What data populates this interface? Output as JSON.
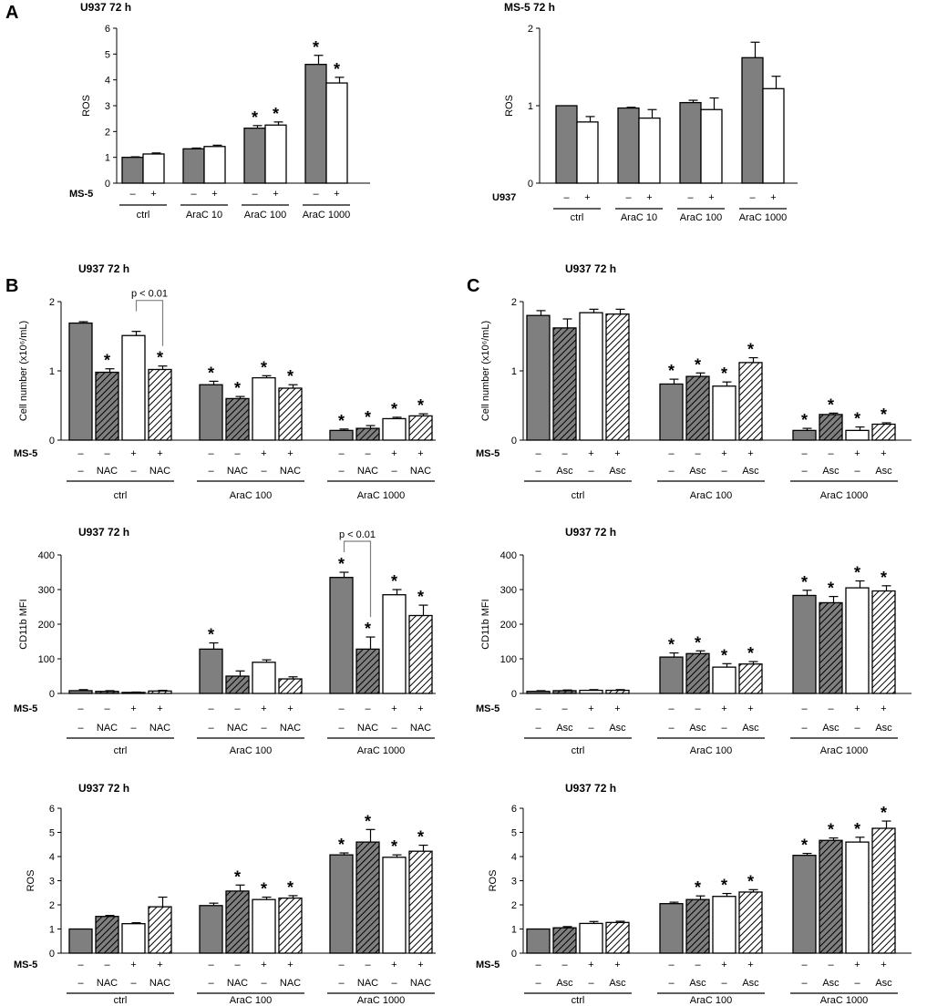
{
  "figure": {
    "panel_labels": [
      "A",
      "B",
      "C"
    ],
    "colors": {
      "ctrl_bar": "#7f7f7f",
      "ms5_bar": "#ffffff",
      "axis": "#000000",
      "bracket": "#808080"
    }
  },
  "chart_data": [
    {
      "id": "A-left",
      "type": "bar",
      "title": "U937 72 h",
      "ylabel": "ROS",
      "ylim": [
        0,
        6
      ],
      "yticks": [
        0,
        1,
        2,
        3,
        4,
        5,
        6
      ],
      "factor_label": "MS-5",
      "factor_values": [
        "–",
        "+"
      ],
      "groups": [
        "ctrl",
        "AraC 10",
        "AraC 100",
        "AraC 1000"
      ],
      "series": [
        {
          "name": "MS-5 –",
          "style": "grey",
          "values": [
            1.0,
            1.33,
            2.13,
            4.6
          ],
          "errors": [
            0.02,
            0.03,
            0.1,
            0.35
          ],
          "sig": [
            false,
            false,
            true,
            true
          ]
        },
        {
          "name": "MS-5 +",
          "style": "white",
          "values": [
            1.13,
            1.42,
            2.25,
            3.88
          ],
          "errors": [
            0.04,
            0.05,
            0.12,
            0.22
          ],
          "sig": [
            false,
            false,
            true,
            true
          ]
        }
      ]
    },
    {
      "id": "A-right",
      "type": "bar",
      "title": "MS-5 72 h",
      "ylabel": "ROS",
      "ylim": [
        0,
        2
      ],
      "yticks": [
        0,
        1,
        2
      ],
      "factor_label": "U937",
      "factor_values": [
        "–",
        "+"
      ],
      "groups": [
        "ctrl",
        "AraC 10",
        "AraC 100",
        "AraC 1000"
      ],
      "series": [
        {
          "name": "U937 –",
          "style": "grey",
          "values": [
            1.0,
            0.97,
            1.04,
            1.62
          ],
          "errors": [
            0.0,
            0.01,
            0.03,
            0.2
          ],
          "sig": [
            false,
            false,
            false,
            false
          ]
        },
        {
          "name": "U937 +",
          "style": "white",
          "values": [
            0.79,
            0.84,
            0.95,
            1.22
          ],
          "errors": [
            0.07,
            0.11,
            0.15,
            0.16
          ],
          "sig": [
            false,
            false,
            false,
            false
          ]
        }
      ]
    },
    {
      "id": "B-cell",
      "type": "bar",
      "title": "U937 72 h",
      "ylabel": "Cell number (x10⁶/mL)",
      "ylim": [
        0,
        2
      ],
      "yticks": [
        0,
        1,
        2
      ],
      "factor_label": "MS-5",
      "factor_values": [
        "–",
        "–",
        "+",
        "+"
      ],
      "treatment_values": [
        "–",
        "NAC",
        "–",
        "NAC"
      ],
      "groups": [
        "ctrl",
        "AraC 100",
        "AraC 1000"
      ],
      "series": [
        {
          "name": "MS-5 –",
          "style": "grey",
          "values": [
            1.69,
            0.8,
            0.14
          ],
          "errors": [
            0.02,
            0.05,
            0.02
          ],
          "sig": [
            false,
            true,
            true
          ]
        },
        {
          "name": "MS-5 – NAC",
          "style": "greyhatch",
          "values": [
            0.98,
            0.6,
            0.17
          ],
          "errors": [
            0.05,
            0.03,
            0.04
          ],
          "sig": [
            true,
            true,
            true
          ]
        },
        {
          "name": "MS-5 +",
          "style": "white",
          "values": [
            1.51,
            0.9,
            0.31
          ],
          "errors": [
            0.06,
            0.03,
            0.02
          ],
          "sig": [
            false,
            true,
            true
          ]
        },
        {
          "name": "MS-5 + NAC",
          "style": "whitehatch",
          "values": [
            1.02,
            0.75,
            0.35
          ],
          "errors": [
            0.05,
            0.05,
            0.03
          ],
          "sig": [
            true,
            true,
            true
          ]
        }
      ],
      "bracket": {
        "label": "p < 0.01",
        "group": 0,
        "from": 2,
        "to": 3
      }
    },
    {
      "id": "C-cell",
      "type": "bar",
      "title": "U937 72 h",
      "ylabel": "Cell number (x10⁶/mL)",
      "ylim": [
        0,
        2
      ],
      "yticks": [
        0,
        1,
        2
      ],
      "factor_label": "MS-5",
      "factor_values": [
        "–",
        "–",
        "+",
        "+"
      ],
      "treatment_values": [
        "–",
        "Asc",
        "–",
        "Asc"
      ],
      "groups": [
        "ctrl",
        "AraC 100",
        "AraC 1000"
      ],
      "series": [
        {
          "name": "MS-5 –",
          "style": "grey",
          "values": [
            1.8,
            0.81,
            0.14
          ],
          "errors": [
            0.07,
            0.07,
            0.03
          ],
          "sig": [
            false,
            true,
            true
          ]
        },
        {
          "name": "MS-5 – Asc",
          "style": "greyhatch",
          "values": [
            1.62,
            0.92,
            0.37
          ],
          "errors": [
            0.13,
            0.05,
            0.02
          ],
          "sig": [
            false,
            true,
            true
          ]
        },
        {
          "name": "MS-5 +",
          "style": "white",
          "values": [
            1.84,
            0.78,
            0.14
          ],
          "errors": [
            0.05,
            0.06,
            0.05
          ],
          "sig": [
            false,
            true,
            true
          ]
        },
        {
          "name": "MS-5 + Asc",
          "style": "whitehatch",
          "values": [
            1.82,
            1.12,
            0.23
          ],
          "errors": [
            0.07,
            0.07,
            0.02
          ],
          "sig": [
            false,
            true,
            true
          ]
        }
      ]
    },
    {
      "id": "B-cd11b",
      "type": "bar",
      "title": "U937 72 h",
      "ylabel": "CD11b MFI",
      "ylim": [
        0,
        400
      ],
      "yticks": [
        0,
        100,
        200,
        300,
        400
      ],
      "factor_label": "MS-5",
      "factor_values": [
        "–",
        "–",
        "+",
        "+"
      ],
      "treatment_values": [
        "–",
        "NAC",
        "–",
        "NAC"
      ],
      "groups": [
        "ctrl",
        "AraC 100",
        "AraC 1000"
      ],
      "series": [
        {
          "name": "MS-5 –",
          "style": "grey",
          "values": [
            8,
            128,
            335
          ],
          "errors": [
            3,
            18,
            15
          ],
          "sig": [
            false,
            true,
            true
          ]
        },
        {
          "name": "MS-5 – NAC",
          "style": "greyhatch",
          "values": [
            6,
            50,
            128
          ],
          "errors": [
            2,
            15,
            35
          ],
          "sig": [
            false,
            false,
            true
          ]
        },
        {
          "name": "MS-5 +",
          "style": "white",
          "values": [
            3,
            90,
            285
          ],
          "errors": [
            1,
            7,
            15
          ],
          "sig": [
            false,
            false,
            true
          ]
        },
        {
          "name": "MS-5 + NAC",
          "style": "whitehatch",
          "values": [
            7,
            42,
            225
          ],
          "errors": [
            2,
            6,
            30
          ],
          "sig": [
            false,
            false,
            true
          ]
        }
      ],
      "bracket": {
        "label": "p < 0.01",
        "group": 2,
        "from": 0,
        "to": 1
      }
    },
    {
      "id": "C-cd11b",
      "type": "bar",
      "title": "U937 72 h",
      "ylabel": "CD11b MFI",
      "ylim": [
        0,
        400
      ],
      "yticks": [
        0,
        100,
        200,
        300,
        400
      ],
      "factor_label": "MS-5",
      "factor_values": [
        "–",
        "–",
        "+",
        "+"
      ],
      "treatment_values": [
        "–",
        "Asc",
        "–",
        "Asc"
      ],
      "groups": [
        "ctrl",
        "AraC 100",
        "AraC 1000"
      ],
      "series": [
        {
          "name": "MS-5 –",
          "style": "grey",
          "values": [
            6,
            105,
            283
          ],
          "errors": [
            2,
            12,
            15
          ],
          "sig": [
            false,
            true,
            true
          ]
        },
        {
          "name": "MS-5 – Asc",
          "style": "greyhatch",
          "values": [
            8,
            115,
            262
          ],
          "errors": [
            2,
            8,
            18
          ],
          "sig": [
            false,
            true,
            true
          ]
        },
        {
          "name": "MS-5 +",
          "style": "white",
          "values": [
            9,
            76,
            305
          ],
          "errors": [
            2,
            10,
            20
          ],
          "sig": [
            false,
            true,
            true
          ]
        },
        {
          "name": "MS-5 + Asc",
          "style": "whitehatch",
          "values": [
            9,
            85,
            296
          ],
          "errors": [
            2,
            7,
            15
          ],
          "sig": [
            false,
            true,
            true
          ]
        }
      ]
    },
    {
      "id": "B-ros",
      "type": "bar",
      "title": "U937 72 h",
      "ylabel": "ROS",
      "ylim": [
        0,
        6
      ],
      "yticks": [
        0,
        1,
        2,
        3,
        4,
        5,
        6
      ],
      "factor_label": "MS-5",
      "factor_values": [
        "–",
        "–",
        "+",
        "+"
      ],
      "treatment_values": [
        "–",
        "NAC",
        "–",
        "NAC"
      ],
      "groups": [
        "ctrl",
        "AraC 100",
        "AraC 1000"
      ],
      "series": [
        {
          "name": "MS-5 –",
          "style": "grey",
          "values": [
            1.0,
            1.97,
            4.07
          ],
          "errors": [
            0.0,
            0.1,
            0.08
          ],
          "sig": [
            false,
            false,
            true
          ]
        },
        {
          "name": "MS-5 – NAC",
          "style": "greyhatch",
          "values": [
            1.52,
            2.57,
            4.6
          ],
          "errors": [
            0.04,
            0.25,
            0.52
          ],
          "sig": [
            false,
            true,
            true
          ]
        },
        {
          "name": "MS-5 +",
          "style": "white",
          "values": [
            1.22,
            2.22,
            3.97
          ],
          "errors": [
            0.04,
            0.1,
            0.1
          ],
          "sig": [
            false,
            true,
            true
          ]
        },
        {
          "name": "MS-5 + NAC",
          "style": "whitehatch",
          "values": [
            1.92,
            2.28,
            4.22
          ],
          "errors": [
            0.4,
            0.1,
            0.25
          ],
          "sig": [
            false,
            true,
            true
          ]
        }
      ]
    },
    {
      "id": "C-ros",
      "type": "bar",
      "title": "U937 72 h",
      "ylabel": "ROS",
      "ylim": [
        0,
        6
      ],
      "yticks": [
        0,
        1,
        2,
        3,
        4,
        5,
        6
      ],
      "factor_label": "MS-5",
      "factor_values": [
        "–",
        "–",
        "+",
        "+"
      ],
      "treatment_values": [
        "–",
        "Asc",
        "–",
        "Asc"
      ],
      "groups": [
        "ctrl",
        "AraC 100",
        "AraC 1000"
      ],
      "series": [
        {
          "name": "MS-5 –",
          "style": "grey",
          "values": [
            1.0,
            2.05,
            4.05
          ],
          "errors": [
            0.0,
            0.06,
            0.08
          ],
          "sig": [
            false,
            false,
            true
          ]
        },
        {
          "name": "MS-5 – Asc",
          "style": "greyhatch",
          "values": [
            1.05,
            2.22,
            4.67
          ],
          "errors": [
            0.05,
            0.15,
            0.1
          ],
          "sig": [
            false,
            true,
            true
          ]
        },
        {
          "name": "MS-5 +",
          "style": "white",
          "values": [
            1.23,
            2.35,
            4.6
          ],
          "errors": [
            0.08,
            0.12,
            0.2
          ],
          "sig": [
            false,
            true,
            true
          ]
        },
        {
          "name": "MS-5 + Asc",
          "style": "whitehatch",
          "values": [
            1.27,
            2.53,
            5.17
          ],
          "errors": [
            0.05,
            0.1,
            0.3
          ],
          "sig": [
            false,
            true,
            true
          ]
        }
      ]
    }
  ]
}
